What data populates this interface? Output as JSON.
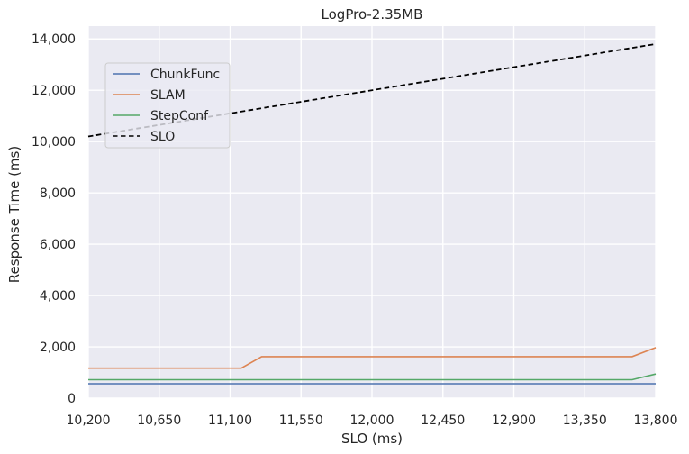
{
  "chart_data": {
    "type": "line",
    "title": "LogPro-2.35MB",
    "xlabel": "SLO (ms)",
    "ylabel": "Response Time (ms)",
    "xlim": [
      10200,
      13800
    ],
    "ylim": [
      0,
      14500
    ],
    "xticks": [
      10200,
      10650,
      11100,
      11550,
      12000,
      12450,
      12900,
      13350,
      13800
    ],
    "xtick_labels": [
      "10,200",
      "10,650",
      "11,100",
      "11,550",
      "12,000",
      "12,450",
      "12,900",
      "13,350",
      "13,800"
    ],
    "yticks": [
      0,
      2000,
      4000,
      6000,
      8000,
      10000,
      12000,
      14000
    ],
    "ytick_labels": [
      "0",
      "2,000",
      "4,000",
      "6,000",
      "8,000",
      "10,000",
      "12,000",
      "14,000"
    ],
    "grid": true,
    "legend_position": "upper-left",
    "series": [
      {
        "name": "ChunkFunc",
        "color": "#4c72b0",
        "style": "solid",
        "x": [
          10200,
          13800
        ],
        "y": [
          560,
          560
        ]
      },
      {
        "name": "SLAM",
        "color": "#dd8452",
        "style": "solid",
        "x": [
          10200,
          11100,
          11170,
          11300,
          13300,
          13650,
          13800
        ],
        "y": [
          1170,
          1170,
          1170,
          1620,
          1620,
          1620,
          1970
        ]
      },
      {
        "name": "StepConf",
        "color": "#55a868",
        "style": "solid",
        "x": [
          10200,
          13300,
          13650,
          13800
        ],
        "y": [
          720,
          720,
          720,
          940
        ]
      },
      {
        "name": "SLO",
        "color": "#000000",
        "style": "dashed",
        "x": [
          10200,
          13800
        ],
        "y": [
          10200,
          13800
        ]
      }
    ]
  }
}
